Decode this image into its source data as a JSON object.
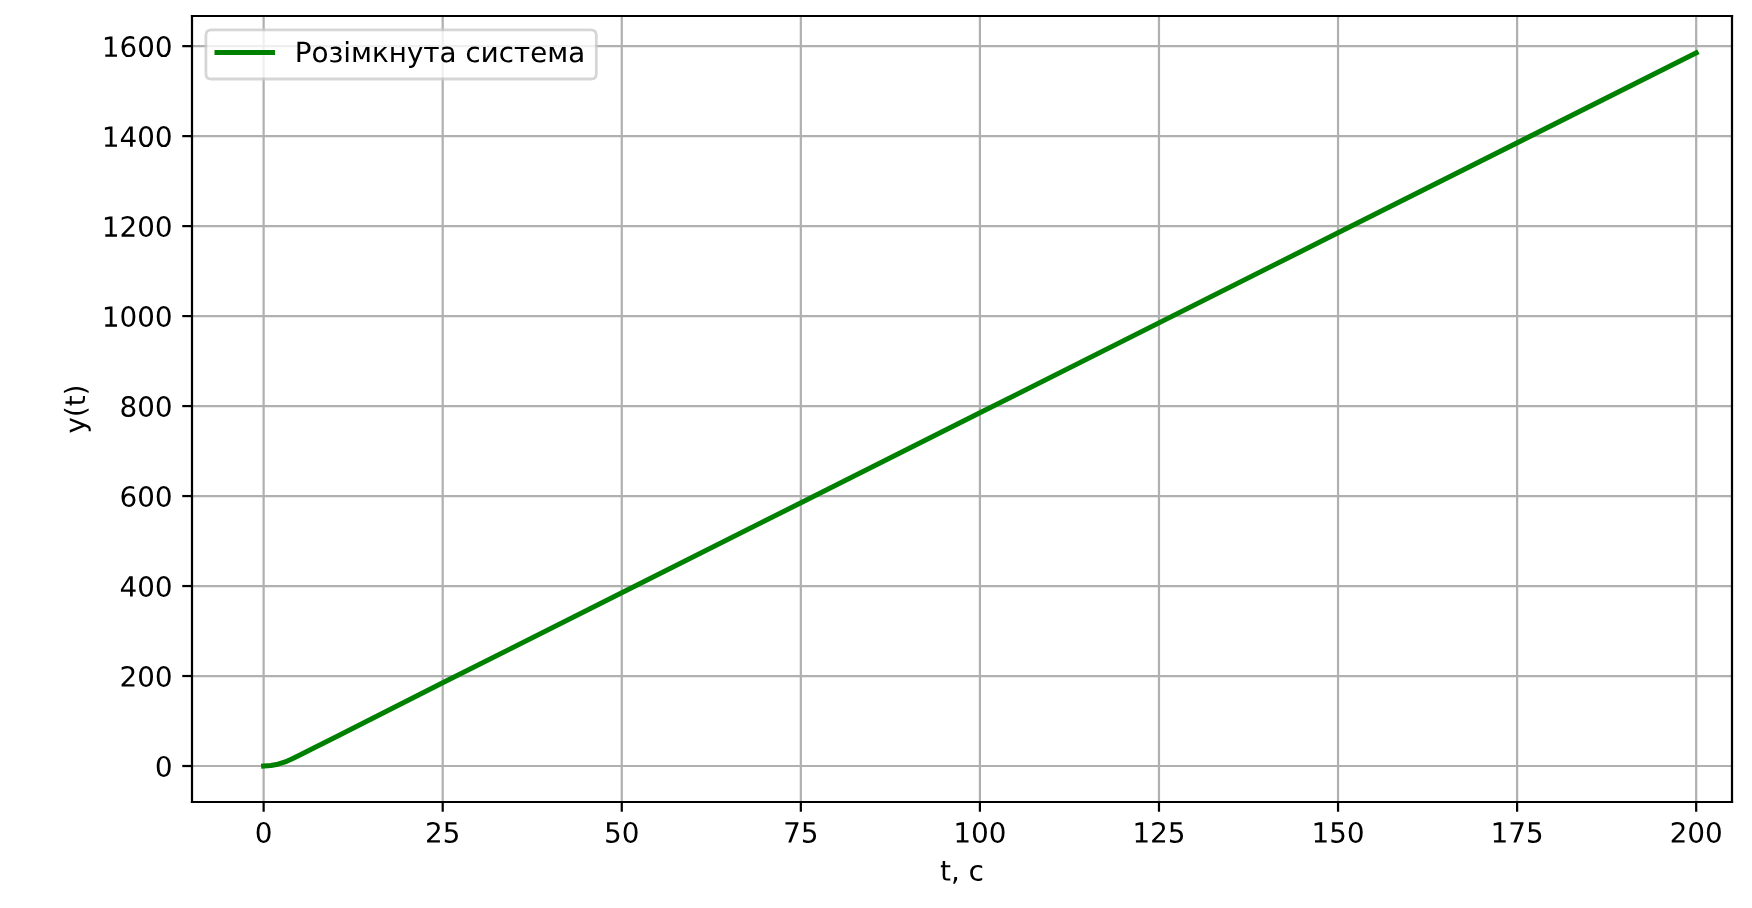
{
  "chart_data": {
    "type": "line",
    "xlabel": "t, с",
    "ylabel": "y(t)",
    "series": [
      {
        "name": "Розімкнута система",
        "color": "#008000",
        "x": [
          0,
          1,
          2,
          3,
          4,
          5,
          7,
          10,
          25,
          50,
          100,
          150,
          200
        ],
        "values": [
          0,
          1,
          4,
          9,
          16,
          24,
          40,
          64,
          185,
          385,
          785,
          1185,
          1585
        ]
      }
    ],
    "xlim": [
      -10,
      205
    ],
    "ylim": [
      -80,
      1667
    ],
    "xticks": [
      0,
      25,
      50,
      75,
      100,
      125,
      150,
      175,
      200
    ],
    "yticks": [
      0,
      200,
      400,
      600,
      800,
      1000,
      1200,
      1400,
      1600
    ],
    "grid": true,
    "legend": "top left"
  }
}
